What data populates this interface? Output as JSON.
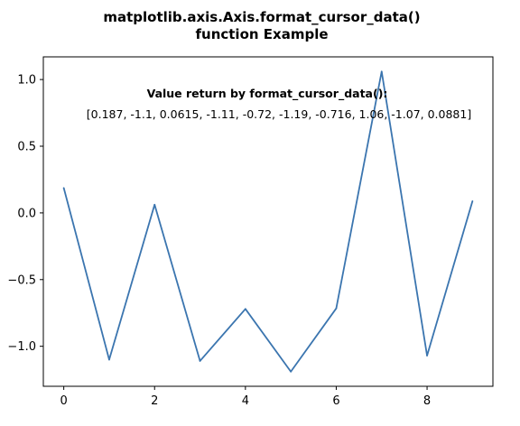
{
  "chart_data": {
    "type": "line",
    "title_lines": [
      "matplotlib.axis.Axis.format_cursor_data()",
      "function Example"
    ],
    "xlabel": "",
    "ylabel": "",
    "x": [
      0,
      1,
      2,
      3,
      4,
      5,
      6,
      7,
      8,
      9
    ],
    "series": [
      {
        "values": [
          0.187,
          -1.1,
          0.0615,
          -1.11,
          -0.72,
          -1.19,
          -0.716,
          1.06,
          -1.07,
          0.0881
        ],
        "color": "#3b75af"
      }
    ],
    "xlim": [
      -0.45,
      9.45
    ],
    "ylim": [
      -1.3,
      1.17
    ],
    "xticks": [
      0,
      2,
      4,
      6,
      8
    ],
    "xtick_labels": [
      "0",
      "2",
      "4",
      "6",
      "8"
    ],
    "yticks": [
      1.0,
      0.5,
      0.0,
      -0.5,
      -1.0
    ],
    "ytick_labels": [
      "1.0",
      "0.5",
      "0.0",
      "−0.5",
      "−1.0"
    ],
    "grid": false,
    "annotation": {
      "heading": "Value return by format_cursor_data():",
      "text": "[0.187, -1.1, 0.0615, -1.11, -0.72, -1.19, -0.716, 1.06, -1.07, 0.0881]"
    }
  }
}
